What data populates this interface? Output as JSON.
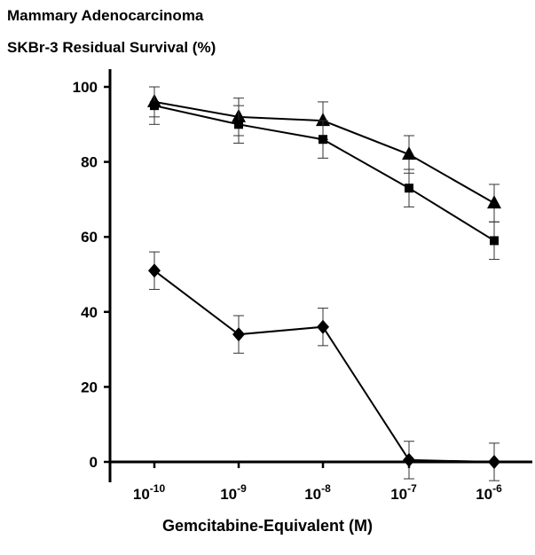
{
  "chart_data": {
    "type": "line",
    "title": "Mammary Adenocarcinoma",
    "subtitle": "SKBr-3 Residual Survival (%)",
    "xlabel": "Gemcitabine-Equivalent (M)",
    "ylabel": "",
    "x_scale": "log",
    "x_tick_base": "10",
    "x_tick_exponents": [
      "-10",
      "-9",
      "-8",
      "-7",
      "-6"
    ],
    "x": [
      1e-10,
      1e-09,
      1e-08,
      1e-07,
      1e-06
    ],
    "ylim": [
      0,
      100
    ],
    "y_ticks": [
      0,
      20,
      40,
      60,
      80,
      100
    ],
    "grid": false,
    "series": [
      {
        "marker": "triangle",
        "values": [
          96,
          92,
          91,
          82,
          69
        ],
        "errors": [
          4,
          5,
          5,
          5,
          5
        ]
      },
      {
        "marker": "square",
        "values": [
          95,
          90,
          86,
          73,
          59
        ],
        "errors": [
          5,
          5,
          5,
          5,
          5
        ]
      },
      {
        "marker": "diamond",
        "values": [
          51,
          34,
          36,
          0.5,
          0
        ],
        "errors": [
          5,
          5,
          5,
          5,
          5
        ]
      }
    ]
  }
}
